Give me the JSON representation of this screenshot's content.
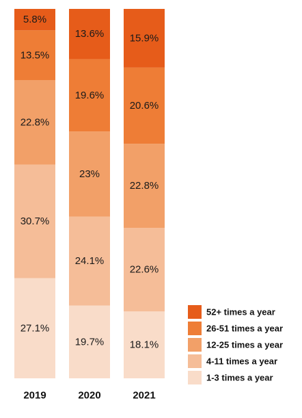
{
  "chart_data": {
    "type": "bar",
    "stacked": true,
    "orientation": "vertical",
    "categories": [
      "2019",
      "2020",
      "2021"
    ],
    "series": [
      {
        "name": "1-3 times a year",
        "values": [
          27.1,
          19.7,
          18.1
        ],
        "labels": [
          "27.1%",
          "19.7%",
          "18.1%"
        ],
        "color": "#F9DCC9"
      },
      {
        "name": "4-11 times a year",
        "values": [
          30.7,
          24.1,
          22.6
        ],
        "labels": [
          "30.7%",
          "24.1%",
          "22.6%"
        ],
        "color": "#F5BD98"
      },
      {
        "name": "12-25 times a year",
        "values": [
          22.8,
          23,
          22.8
        ],
        "labels": [
          "22.8%",
          "23%",
          "22.8%"
        ],
        "color": "#F2A068"
      },
      {
        "name": "26-51 times a year",
        "values": [
          13.5,
          19.6,
          20.6
        ],
        "labels": [
          "13.5%",
          "19.6%",
          "20.6%"
        ],
        "color": "#EE7D36"
      },
      {
        "name": "52+ times a year",
        "values": [
          5.8,
          13.6,
          15.9
        ],
        "labels": [
          "5.8%",
          "13.6%",
          "15.9%"
        ],
        "color": "#E65C1A"
      }
    ],
    "legend": {
      "position": "bottom-right",
      "order": [
        "52+ times a year",
        "26-51 times a year",
        "12-25 times a year",
        "4-11 times a year",
        "1-3 times a year"
      ]
    },
    "ylim": [
      0,
      100
    ],
    "grid": false,
    "title": "",
    "xlabel": "",
    "ylabel": ""
  }
}
